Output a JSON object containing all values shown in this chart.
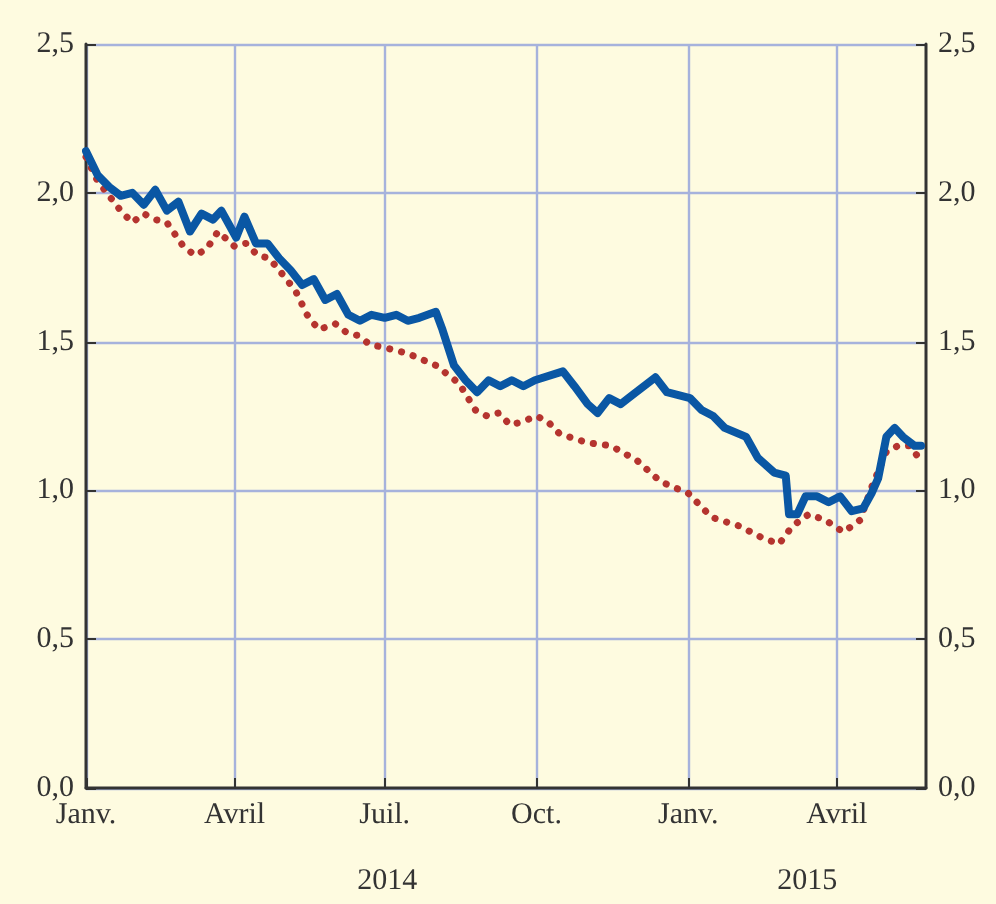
{
  "chart_data": {
    "type": "line",
    "xlim": [
      "2014-01-01",
      "2015-05-25"
    ],
    "xticks": [
      {
        "value": "2014-01-01",
        "label": "Janv."
      },
      {
        "value": "2014-04-01",
        "label": "Avril"
      },
      {
        "value": "2014-07-01",
        "label": "Juil."
      },
      {
        "value": "2014-10-01",
        "label": "Oct."
      },
      {
        "value": "2015-01-01",
        "label": "Janv."
      },
      {
        "value": "2015-04-01",
        "label": "Avril"
      }
    ],
    "annotations": [
      "2014",
      "2015"
    ],
    "ylim": [
      0,
      2.5
    ],
    "yticks": [
      {
        "value": 0,
        "label": "0,0"
      },
      {
        "value": 0.5,
        "label": "0,5"
      },
      {
        "value": 1,
        "label": "1,0"
      },
      {
        "value": 1.5,
        "label": "1,5"
      },
      {
        "value": 2,
        "label": "2,0"
      },
      {
        "value": 2.5,
        "label": "2,5"
      }
    ],
    "y2lim": [
      0,
      2.5
    ],
    "y2ticks": [
      {
        "value": 0,
        "label": "0,0"
      },
      {
        "value": 0.5,
        "label": "0,5"
      },
      {
        "value": 1,
        "label": "1,0"
      },
      {
        "value": 1.5,
        "label": "1,5"
      },
      {
        "value": 2,
        "label": "2,0"
      },
      {
        "value": 2.5,
        "label": "2,5"
      }
    ],
    "grid": true,
    "marker": "none",
    "series": [
      {
        "color": "#0a57a4",
        "line_style": "solid",
        "x": [
          "2014-01-01",
          "2014-01-08",
          "2014-01-15",
          "2014-01-22",
          "2014-01-29",
          "2014-02-05",
          "2014-02-12",
          "2014-02-19",
          "2014-02-26",
          "2014-03-05",
          "2014-03-12",
          "2014-03-19",
          "2014-03-24",
          "2014-04-02",
          "2014-04-07",
          "2014-04-14",
          "2014-04-21",
          "2014-04-28",
          "2014-05-05",
          "2014-05-12",
          "2014-05-19",
          "2014-05-26",
          "2014-06-02",
          "2014-06-09",
          "2014-06-16",
          "2014-06-23",
          "2014-07-01",
          "2014-07-08",
          "2014-07-15",
          "2014-07-22",
          "2014-08-01",
          "2014-08-05",
          "2014-08-12",
          "2014-08-19",
          "2014-08-26",
          "2014-09-02",
          "2014-09-09",
          "2014-09-16",
          "2014-09-23",
          "2014-09-30",
          "2014-10-17",
          "2014-10-24",
          "2014-11-01",
          "2014-11-07",
          "2014-11-14",
          "2014-11-21",
          "2014-11-28",
          "2014-12-12",
          "2014-12-19",
          "2014-12-26",
          "2015-01-02",
          "2015-01-09",
          "2015-01-16",
          "2015-01-23",
          "2015-02-05",
          "2015-02-12",
          "2015-02-22",
          "2015-03-01",
          "2015-03-03",
          "2015-03-08",
          "2015-03-13",
          "2015-03-20",
          "2015-03-27",
          "2015-04-03",
          "2015-04-10",
          "2015-04-17",
          "2015-04-22",
          "2015-04-26",
          "2015-05-01",
          "2015-05-06",
          "2015-05-11",
          "2015-05-18",
          "2015-05-22"
        ],
        "values": [
          2.14,
          2.06,
          2.02,
          1.99,
          2.0,
          1.96,
          2.01,
          1.94,
          1.97,
          1.87,
          1.93,
          1.91,
          1.94,
          1.85,
          1.92,
          1.83,
          1.83,
          1.78,
          1.74,
          1.69,
          1.71,
          1.64,
          1.66,
          1.59,
          1.57,
          1.59,
          1.58,
          1.59,
          1.57,
          1.58,
          1.6,
          1.54,
          1.42,
          1.37,
          1.33,
          1.37,
          1.35,
          1.37,
          1.35,
          1.37,
          1.4,
          1.35,
          1.29,
          1.26,
          1.31,
          1.29,
          1.32,
          1.38,
          1.33,
          1.32,
          1.31,
          1.27,
          1.25,
          1.21,
          1.18,
          1.11,
          1.06,
          1.05,
          0.92,
          0.92,
          0.98,
          0.98,
          0.96,
          0.98,
          0.93,
          0.94,
          0.99,
          1.04,
          1.18,
          1.21,
          1.18,
          1.15,
          1.15
        ]
      },
      {
        "color": "#b5342f",
        "line_style": "dotted",
        "x": [
          "2014-01-01",
          "2014-01-08",
          "2014-01-15",
          "2014-01-22",
          "2014-01-29",
          "2014-02-05",
          "2014-02-12",
          "2014-02-19",
          "2014-03-01",
          "2014-03-08",
          "2014-03-15",
          "2014-03-22",
          "2014-04-01",
          "2014-04-08",
          "2014-04-15",
          "2014-04-22",
          "2014-05-01",
          "2014-05-08",
          "2014-05-15",
          "2014-05-22",
          "2014-06-01",
          "2014-06-08",
          "2014-06-15",
          "2014-06-22",
          "2014-07-01",
          "2014-07-15",
          "2014-08-01",
          "2014-08-15",
          "2014-08-25",
          "2014-09-01",
          "2014-09-08",
          "2014-09-15",
          "2014-09-22",
          "2014-10-01",
          "2014-10-08",
          "2014-10-15",
          "2014-11-01",
          "2014-11-15",
          "2014-12-01",
          "2014-12-15",
          "2015-01-01",
          "2015-01-15",
          "2015-02-01",
          "2015-02-15",
          "2015-02-25",
          "2015-03-05",
          "2015-03-15",
          "2015-03-25",
          "2015-04-05",
          "2015-04-15",
          "2015-04-22",
          "2015-05-01",
          "2015-05-08",
          "2015-05-15",
          "2015-05-22"
        ],
        "values": [
          2.12,
          2.04,
          1.99,
          1.94,
          1.9,
          1.93,
          1.91,
          1.9,
          1.82,
          1.79,
          1.81,
          1.87,
          1.82,
          1.83,
          1.79,
          1.78,
          1.72,
          1.67,
          1.59,
          1.54,
          1.56,
          1.53,
          1.52,
          1.49,
          1.48,
          1.46,
          1.42,
          1.36,
          1.27,
          1.25,
          1.26,
          1.22,
          1.23,
          1.25,
          1.23,
          1.19,
          1.16,
          1.15,
          1.1,
          1.03,
          0.99,
          0.91,
          0.88,
          0.84,
          0.82,
          0.88,
          0.92,
          0.9,
          0.86,
          0.9,
          1.01,
          1.13,
          1.15,
          1.15,
          1.1
        ]
      }
    ]
  }
}
